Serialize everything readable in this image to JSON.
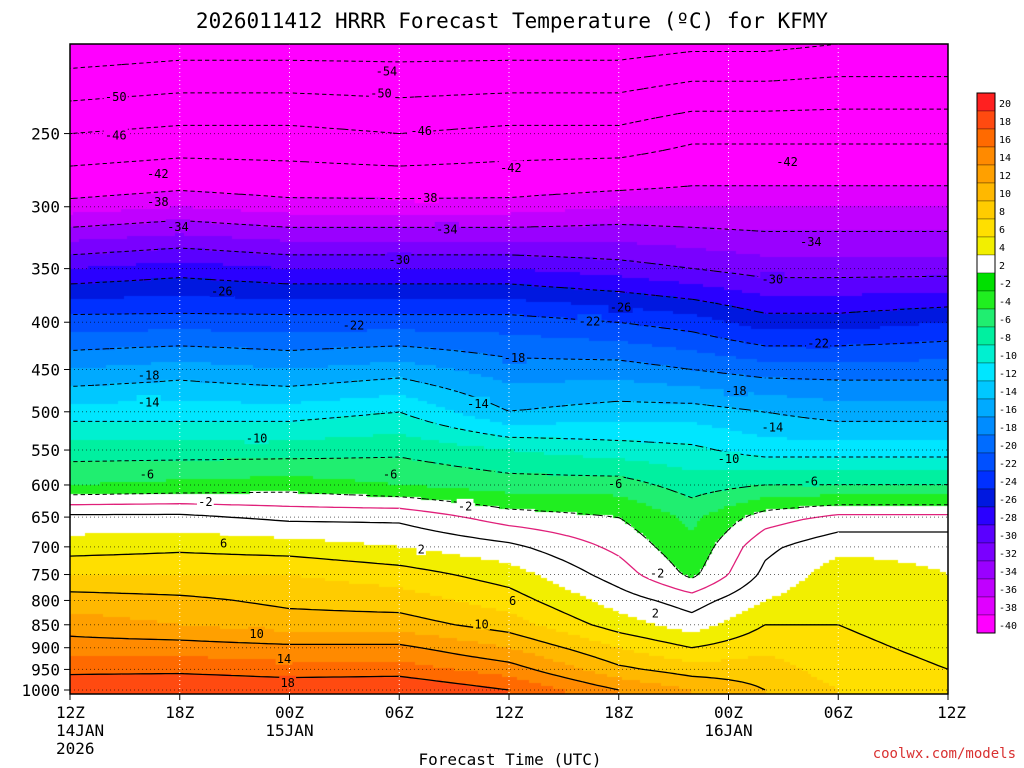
{
  "chart_data": {
    "type": "heatmap",
    "title": "2026011412 HRRR Forecast Temperature (ºC) for KFMY",
    "xlabel": "Forecast Time (UTC)",
    "ylabel": "",
    "credit": "coolwx.com/models",
    "x_ticks": [
      {
        "label": "12Z",
        "sub1": "14JAN",
        "sub2": "2026",
        "hour": 0
      },
      {
        "label": "18Z",
        "sub1": "",
        "sub2": "",
        "hour": 6
      },
      {
        "label": "00Z",
        "sub1": "15JAN",
        "sub2": "",
        "hour": 12
      },
      {
        "label": "06Z",
        "sub1": "",
        "sub2": "",
        "hour": 18
      },
      {
        "label": "12Z",
        "sub1": "",
        "sub2": "",
        "hour": 24
      },
      {
        "label": "18Z",
        "sub1": "",
        "sub2": "",
        "hour": 30
      },
      {
        "label": "00Z",
        "sub1": "16JAN",
        "sub2": "",
        "hour": 36
      },
      {
        "label": "06Z",
        "sub1": "",
        "sub2": "",
        "hour": 42
      },
      {
        "label": "12Z",
        "sub1": "",
        "sub2": "",
        "hour": 48
      }
    ],
    "x_range_hours": [
      0,
      48
    ],
    "y_ticks_hpa": [
      250,
      300,
      350,
      400,
      450,
      500,
      550,
      600,
      650,
      700,
      750,
      800,
      850,
      900,
      950,
      1000
    ],
    "y_range_hpa": [
      200,
      1010
    ],
    "y_scale": "log-pressure (inverted)",
    "grid": true,
    "colorbar": {
      "placement": "right",
      "labels": [
        "20",
        "18",
        "16",
        "14",
        "12",
        "10",
        "8",
        "6",
        "4",
        "2",
        "-2",
        "-4",
        "-6",
        "-8",
        "-10",
        "-12",
        "-14",
        "-16",
        "-18",
        "-20",
        "-22",
        "-24",
        "-26",
        "-28",
        "-30",
        "-32",
        "-34",
        "-36",
        "-38",
        "-40"
      ],
      "colors": [
        "#ff2020",
        "#ff4a10",
        "#ff6a00",
        "#ff8a00",
        "#ffa000",
        "#ffb800",
        "#ffcc00",
        "#ffdf00",
        "#f2ef00",
        "#ffffff",
        "#00e000",
        "#20ee20",
        "#20ee70",
        "#00f0a0",
        "#00f0d0",
        "#00e6ff",
        "#00c8ff",
        "#00aaff",
        "#008cff",
        "#006cff",
        "#0050ff",
        "#0030ff",
        "#0018e0",
        "#2a00ff",
        "#5a00ff",
        "#7a00ff",
        "#9a00ff",
        "#c000ff",
        "#e000ff",
        "#ff00ff"
      ]
    },
    "contour_levels_C": [
      18,
      14,
      10,
      6,
      2,
      -2,
      -6,
      -10,
      -14,
      -18,
      -22,
      -26,
      -30,
      -34,
      -38,
      -42,
      -46,
      -50,
      -54
    ],
    "surface_pressure_hpa": 1013,
    "profiles": [
      {
        "hour": 0,
        "temps": [
          [
            200,
            -57
          ],
          [
            250,
            -46
          ],
          [
            300,
            -37
          ],
          [
            350,
            -28
          ],
          [
            400,
            -21
          ],
          [
            450,
            -16
          ],
          [
            500,
            -11
          ],
          [
            550,
            -7
          ],
          [
            600,
            -4
          ],
          [
            650,
            2.5
          ],
          [
            700,
            5
          ],
          [
            750,
            8
          ],
          [
            800,
            11
          ],
          [
            850,
            13
          ],
          [
            900,
            15
          ],
          [
            950,
            17.5
          ],
          [
            1000,
            19.5
          ]
        ]
      },
      {
        "hour": 6,
        "temps": [
          [
            200,
            -56
          ],
          [
            250,
            -45
          ],
          [
            300,
            -36
          ],
          [
            350,
            -27
          ],
          [
            400,
            -21
          ],
          [
            450,
            -15
          ],
          [
            500,
            -11
          ],
          [
            550,
            -7
          ],
          [
            600,
            -3.5
          ],
          [
            650,
            2.5
          ],
          [
            700,
            5.5
          ],
          [
            750,
            8
          ],
          [
            800,
            10.5
          ],
          [
            850,
            12
          ],
          [
            900,
            15
          ],
          [
            950,
            17.5
          ],
          [
            1000,
            20
          ]
        ]
      },
      {
        "hour": 12,
        "temps": [
          [
            200,
            -56
          ],
          [
            250,
            -45
          ],
          [
            300,
            -37
          ],
          [
            350,
            -28
          ],
          [
            400,
            -21
          ],
          [
            450,
            -16
          ],
          [
            500,
            -11
          ],
          [
            550,
            -7
          ],
          [
            600,
            -3
          ],
          [
            650,
            1.5
          ],
          [
            700,
            5
          ],
          [
            750,
            8
          ],
          [
            800,
            9.5
          ],
          [
            850,
            11
          ],
          [
            900,
            14.5
          ],
          [
            950,
            17
          ],
          [
            1000,
            19.5
          ]
        ]
      },
      {
        "hour": 18,
        "temps": [
          [
            200,
            -56
          ],
          [
            250,
            -46
          ],
          [
            300,
            -37
          ],
          [
            350,
            -28
          ],
          [
            400,
            -21
          ],
          [
            450,
            -15
          ],
          [
            500,
            -10
          ],
          [
            550,
            -6.5
          ],
          [
            600,
            -4
          ],
          [
            650,
            1.5
          ],
          [
            700,
            4
          ],
          [
            750,
            7
          ],
          [
            800,
            9
          ],
          [
            850,
            11
          ],
          [
            900,
            14.5
          ],
          [
            950,
            17
          ],
          [
            1000,
            20
          ]
        ]
      },
      {
        "hour": 24,
        "temps": [
          [
            200,
            -56
          ],
          [
            250,
            -45
          ],
          [
            300,
            -37
          ],
          [
            350,
            -28
          ],
          [
            400,
            -21
          ],
          [
            450,
            -17
          ],
          [
            500,
            -14
          ],
          [
            550,
            -8
          ],
          [
            600,
            -5
          ],
          [
            650,
            -1
          ],
          [
            700,
            2.5
          ],
          [
            750,
            5
          ],
          [
            800,
            7
          ],
          [
            850,
            9
          ],
          [
            900,
            12
          ],
          [
            950,
            15
          ],
          [
            1000,
            18
          ]
        ]
      },
      {
        "hour": 30,
        "temps": [
          [
            200,
            -56
          ],
          [
            250,
            -45
          ],
          [
            300,
            -36
          ],
          [
            350,
            -29
          ],
          [
            400,
            -22
          ],
          [
            450,
            -17
          ],
          [
            500,
            -13
          ],
          [
            550,
            -9
          ],
          [
            600,
            -5
          ],
          [
            650,
            -2
          ],
          [
            700,
            -0.5
          ],
          [
            750,
            1
          ],
          [
            800,
            3
          ],
          [
            850,
            5
          ],
          [
            900,
            8
          ],
          [
            950,
            10.5
          ],
          [
            1000,
            14
          ]
        ]
      },
      {
        "hour": 34,
        "temps": [
          [
            200,
            -55
          ],
          [
            250,
            -43
          ],
          [
            300,
            -36
          ],
          [
            350,
            -30
          ],
          [
            400,
            -23
          ],
          [
            450,
            -18
          ],
          [
            500,
            -13
          ],
          [
            550,
            -9.5
          ],
          [
            600,
            -7
          ],
          [
            650,
            -4.5
          ],
          [
            700,
            -3.5
          ],
          [
            750,
            -2.5
          ],
          [
            800,
            1
          ],
          [
            850,
            3
          ],
          [
            900,
            6
          ],
          [
            950,
            9
          ],
          [
            1000,
            12
          ]
        ]
      },
      {
        "hour": 38,
        "temps": [
          [
            200,
            -55
          ],
          [
            250,
            -43
          ],
          [
            300,
            -36
          ],
          [
            350,
            -31
          ],
          [
            400,
            -25
          ],
          [
            450,
            -19
          ],
          [
            500,
            -14
          ],
          [
            550,
            -11
          ],
          [
            600,
            -6
          ],
          [
            650,
            -1
          ],
          [
            700,
            1.5
          ],
          [
            750,
            2.5
          ],
          [
            800,
            4
          ],
          [
            850,
            6
          ],
          [
            900,
            7.5
          ],
          [
            950,
            9
          ],
          [
            1000,
            10
          ]
        ]
      },
      {
        "hour": 42,
        "temps": [
          [
            200,
            -54
          ],
          [
            250,
            -43
          ],
          [
            300,
            -36
          ],
          [
            350,
            -31
          ],
          [
            400,
            -25
          ],
          [
            450,
            -19
          ],
          [
            500,
            -15
          ],
          [
            550,
            -11
          ],
          [
            600,
            -6
          ],
          [
            650,
            0.5
          ],
          [
            700,
            3.5
          ],
          [
            750,
            5
          ],
          [
            800,
            5.5
          ],
          [
            850,
            6
          ],
          [
            900,
            6.5
          ],
          [
            950,
            7
          ],
          [
            1000,
            8
          ]
        ]
      },
      {
        "hour": 48,
        "temps": [
          [
            200,
            -54
          ],
          [
            250,
            -43
          ],
          [
            300,
            -36
          ],
          [
            350,
            -31
          ],
          [
            400,
            -24
          ],
          [
            450,
            -19
          ],
          [
            500,
            -15
          ],
          [
            550,
            -11
          ],
          [
            600,
            -6
          ],
          [
            650,
            0.5
          ],
          [
            700,
            3.5
          ],
          [
            750,
            4
          ],
          [
            800,
            4.5
          ],
          [
            850,
            5
          ],
          [
            900,
            5.5
          ],
          [
            950,
            6
          ],
          [
            1000,
            7
          ]
        ]
      }
    ],
    "contour_labels": [
      {
        "text": "-54",
        "hour": 17.3,
        "p": 214
      },
      {
        "text": "-50",
        "hour": 2.5,
        "p": 228
      },
      {
        "text": "-50",
        "hour": 17.0,
        "p": 226
      },
      {
        "text": "-46",
        "hour": 2.5,
        "p": 251
      },
      {
        "text": "-46",
        "hour": 19.2,
        "p": 248
      },
      {
        "text": "-42",
        "hour": 4.8,
        "p": 276
      },
      {
        "text": "-42",
        "hour": 24.1,
        "p": 272
      },
      {
        "text": "-42",
        "hour": 39.2,
        "p": 268
      },
      {
        "text": "-38",
        "hour": 4.8,
        "p": 296
      },
      {
        "text": "-38",
        "hour": 19.5,
        "p": 293
      },
      {
        "text": "-34",
        "hour": 5.9,
        "p": 315
      },
      {
        "text": "-34",
        "hour": 20.6,
        "p": 317
      },
      {
        "text": "-34",
        "hour": 40.5,
        "p": 327
      },
      {
        "text": "-30",
        "hour": 18.0,
        "p": 342
      },
      {
        "text": "-30",
        "hour": 38.4,
        "p": 359
      },
      {
        "text": "-26",
        "hour": 8.3,
        "p": 370
      },
      {
        "text": "-26",
        "hour": 30.1,
        "p": 385
      },
      {
        "text": "-22",
        "hour": 15.5,
        "p": 403
      },
      {
        "text": "-22",
        "hour": 28.4,
        "p": 399
      },
      {
        "text": "-22",
        "hour": 40.9,
        "p": 421
      },
      {
        "text": "-18",
        "hour": 4.3,
        "p": 456
      },
      {
        "text": "-18",
        "hour": 24.3,
        "p": 437
      },
      {
        "text": "-18",
        "hour": 36.4,
        "p": 474
      },
      {
        "text": "-14",
        "hour": 4.3,
        "p": 488
      },
      {
        "text": "-14",
        "hour": 22.3,
        "p": 490
      },
      {
        "text": "-14",
        "hour": 38.4,
        "p": 519
      },
      {
        "text": "-10",
        "hour": 10.2,
        "p": 534
      },
      {
        "text": "-10",
        "hour": 36.0,
        "p": 562
      },
      {
        "text": "-6",
        "hour": 4.2,
        "p": 584
      },
      {
        "text": "-6",
        "hour": 17.5,
        "p": 584
      },
      {
        "text": "-6",
        "hour": 29.8,
        "p": 598
      },
      {
        "text": "-6",
        "hour": 40.5,
        "p": 594
      },
      {
        "text": "-2",
        "hour": 7.4,
        "p": 625
      },
      {
        "text": "-2",
        "hour": 21.6,
        "p": 632
      },
      {
        "text": "-2",
        "hour": 32.1,
        "p": 747
      },
      {
        "text": "2",
        "hour": 19.2,
        "p": 704
      },
      {
        "text": "2",
        "hour": 32.0,
        "p": 825
      },
      {
        "text": "6",
        "hour": 8.4,
        "p": 693
      },
      {
        "text": "6",
        "hour": 24.2,
        "p": 800
      },
      {
        "text": "10",
        "hour": 10.2,
        "p": 869
      },
      {
        "text": "10",
        "hour": 22.5,
        "p": 848
      },
      {
        "text": "14",
        "hour": 11.7,
        "p": 925
      },
      {
        "text": "18",
        "hour": 11.9,
        "p": 982
      }
    ]
  }
}
